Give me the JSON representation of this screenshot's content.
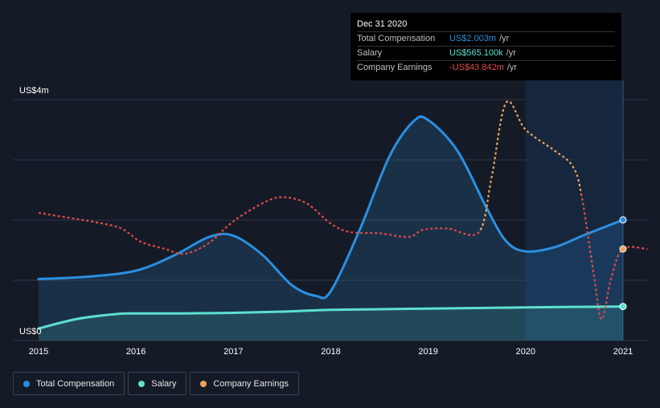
{
  "chart_data": {
    "type": "line",
    "x_ticks": [
      "2015",
      "2016",
      "2017",
      "2018",
      "2019",
      "2020",
      "2021"
    ],
    "y_ticks": [
      {
        "value": 0,
        "label": "US$0"
      },
      {
        "value": 4,
        "label": "US$4m"
      }
    ],
    "ylim": [
      0,
      4
    ],
    "xlim": [
      2015,
      2021.25
    ],
    "grid": true,
    "legend_position": "bottom-left",
    "series": [
      {
        "name": "Total Compensation",
        "color": "#2b8fe0",
        "fill": true,
        "points": [
          [
            2015.0,
            1.02
          ],
          [
            2015.5,
            1.06
          ],
          [
            2016.0,
            1.16
          ],
          [
            2016.4,
            1.42
          ],
          [
            2016.75,
            1.72
          ],
          [
            2017.0,
            1.74
          ],
          [
            2017.3,
            1.42
          ],
          [
            2017.6,
            0.92
          ],
          [
            2017.85,
            0.74
          ],
          [
            2018.0,
            0.82
          ],
          [
            2018.3,
            1.85
          ],
          [
            2018.6,
            3.05
          ],
          [
            2018.85,
            3.64
          ],
          [
            2019.0,
            3.66
          ],
          [
            2019.3,
            3.15
          ],
          [
            2019.6,
            2.2
          ],
          [
            2019.8,
            1.65
          ],
          [
            2020.0,
            1.48
          ],
          [
            2020.3,
            1.55
          ],
          [
            2020.6,
            1.75
          ],
          [
            2021.0,
            2.003
          ]
        ]
      },
      {
        "name": "Salary",
        "color": "#5de0cf",
        "fill": true,
        "points": [
          [
            2015.0,
            0.2
          ],
          [
            2015.4,
            0.36
          ],
          [
            2015.8,
            0.44
          ],
          [
            2016.0,
            0.45
          ],
          [
            2016.5,
            0.45
          ],
          [
            2017.0,
            0.46
          ],
          [
            2017.5,
            0.48
          ],
          [
            2018.0,
            0.51
          ],
          [
            2018.5,
            0.52
          ],
          [
            2019.0,
            0.53
          ],
          [
            2019.5,
            0.54
          ],
          [
            2020.0,
            0.55
          ],
          [
            2020.5,
            0.558
          ],
          [
            2021.0,
            0.5651
          ]
        ]
      },
      {
        "name": "Company Earnings",
        "color": "#f0a35c",
        "negative_color": "#e04b4b",
        "dashed": true,
        "points": [
          [
            2015.0,
            2.12
          ],
          [
            2015.3,
            2.04
          ],
          [
            2015.6,
            1.96
          ],
          [
            2015.85,
            1.86
          ],
          [
            2016.05,
            1.64
          ],
          [
            2016.3,
            1.52
          ],
          [
            2016.5,
            1.44
          ],
          [
            2016.75,
            1.62
          ],
          [
            2017.0,
            1.98
          ],
          [
            2017.3,
            2.28
          ],
          [
            2017.5,
            2.38
          ],
          [
            2017.75,
            2.28
          ],
          [
            2018.0,
            1.94
          ],
          [
            2018.2,
            1.8
          ],
          [
            2018.5,
            1.78
          ],
          [
            2018.8,
            1.72
          ],
          [
            2018.95,
            1.84
          ],
          [
            2019.2,
            1.86
          ],
          [
            2019.52,
            1.8
          ],
          [
            2019.65,
            2.7
          ],
          [
            2019.8,
            3.95
          ],
          [
            2020.0,
            3.5
          ],
          [
            2020.3,
            3.15
          ],
          [
            2020.48,
            2.9
          ],
          [
            2020.57,
            2.45
          ],
          [
            2020.7,
            1.1
          ],
          [
            2020.78,
            0.35
          ],
          [
            2020.88,
            1.05
          ],
          [
            2021.0,
            1.52
          ],
          [
            2021.25,
            1.52
          ]
        ],
        "negative_segments": [
          [
            2015.0,
            2019.52
          ],
          [
            2020.57,
            2021.25
          ]
        ]
      }
    ],
    "highlight": {
      "start": 2020.0,
      "end": 2021.0
    },
    "tooltip": {
      "date": "Dec 31 2020",
      "rows": [
        {
          "label": "Total Compensation",
          "value": "US$2.003m",
          "unit": "/yr",
          "color": "#2b8fe0"
        },
        {
          "label": "Salary",
          "value": "US$565.100k",
          "unit": "/yr",
          "color": "#5de0cf"
        },
        {
          "label": "Company Earnings",
          "value": "-US$43.842m",
          "unit": "/yr",
          "color": "#e04b4b"
        }
      ]
    },
    "legend": [
      {
        "label": "Total Compensation",
        "color": "#2b8fe0"
      },
      {
        "label": "Salary",
        "color": "#5de0cf"
      },
      {
        "label": "Company Earnings",
        "color": "#f0a35c"
      }
    ]
  }
}
